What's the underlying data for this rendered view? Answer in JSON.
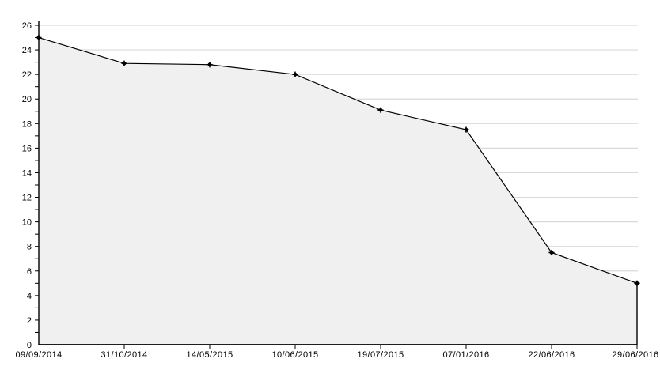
{
  "page": {
    "background": "#ffffff"
  },
  "chart_data": {
    "type": "area",
    "title": "",
    "xlabel": "",
    "ylabel": "",
    "categories": [
      "09/09/2014",
      "31/10/2014",
      "14/05/2015",
      "10/06/2015",
      "19/07/2015",
      "07/01/2016",
      "22/06/2016",
      "29/06/2016"
    ],
    "values": [
      25,
      22.9,
      22.8,
      22,
      19.1,
      17.5,
      7.5,
      5
    ],
    "ylim": [
      0,
      26
    ],
    "ytick_step": 2,
    "yminor_tick_step": 1,
    "ytick_labels": [
      "0",
      "2",
      "4",
      "6",
      "8",
      "10",
      "12",
      "14",
      "16",
      "18",
      "20",
      "22",
      "24",
      "26"
    ],
    "grid": "horizontal",
    "legend": "none",
    "marker": "star-dot",
    "colors": {
      "line": "#000000",
      "marker": "#000000",
      "area_fill": "#f0f0f0",
      "gridline": "#d9d9d9",
      "axis": "#000000",
      "text": "#000000",
      "background": "#ffffff"
    }
  }
}
